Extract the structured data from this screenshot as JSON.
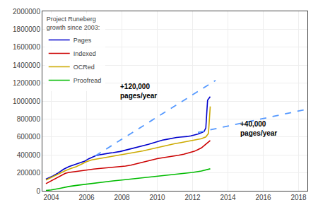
{
  "chart_data": {
    "type": "line",
    "legend_title": "Project Runeberg\ngrowth since 2003:",
    "legend": "upper left",
    "grid": true,
    "xlim": [
      2003.5,
      2018.5
    ],
    "ylim": [
      0,
      2000000
    ],
    "xticks": [
      2004,
      2006,
      2008,
      2010,
      2012,
      2014,
      2016,
      2018
    ],
    "yticks": [
      0,
      200000,
      400000,
      600000,
      800000,
      1000000,
      1200000,
      1400000,
      1600000,
      1800000,
      2000000
    ],
    "series": [
      {
        "name": "Pages",
        "color": "#0000cc",
        "line_style": "solid",
        "x": [
          2003.7,
          2003.9,
          2004.1,
          2004.4,
          2004.7,
          2005.0,
          2005.3,
          2005.6,
          2005.9,
          2006.1,
          2006.3,
          2006.5,
          2006.7,
          2006.9,
          2007.1,
          2007.3,
          2007.5,
          2007.7,
          2007.9,
          2008.1,
          2008.3,
          2008.5,
          2008.7,
          2008.9,
          2009.1,
          2009.3,
          2009.5,
          2009.7,
          2009.9,
          2010.1,
          2010.3,
          2010.5,
          2010.7,
          2010.9,
          2011.1,
          2011.3,
          2011.5,
          2011.7,
          2011.9,
          2012.1,
          2012.3,
          2012.5,
          2012.65,
          2012.75,
          2012.85,
          2013.0
        ],
        "values": [
          130000,
          145000,
          165000,
          200000,
          240000,
          270000,
          290000,
          310000,
          330000,
          355000,
          375000,
          390000,
          400000,
          408000,
          415000,
          420000,
          425000,
          430000,
          438000,
          448000,
          458000,
          468000,
          475000,
          482000,
          492000,
          505000,
          518000,
          530000,
          542000,
          555000,
          565000,
          572000,
          580000,
          590000,
          595000,
          598000,
          600000,
          605000,
          612000,
          620000,
          632000,
          648000,
          660000,
          700000,
          1010000,
          1050000
        ]
      },
      {
        "name": "Indexed",
        "color": "#cc0000",
        "line_style": "solid",
        "x": [
          2003.7,
          2003.9,
          2004.2,
          2004.5,
          2004.8,
          2005.0,
          2005.3,
          2005.6,
          2005.9,
          2006.1,
          2006.4,
          2006.7,
          2007.0,
          2007.3,
          2007.6,
          2007.9,
          2008.2,
          2008.5,
          2008.8,
          2009.1,
          2009.4,
          2009.7,
          2010.0,
          2010.3,
          2010.6,
          2010.9,
          2011.2,
          2011.5,
          2011.7,
          2011.9,
          2012.1,
          2012.3,
          2012.5,
          2012.7,
          2012.9,
          2013.0
        ],
        "values": [
          80000,
          100000,
          130000,
          165000,
          195000,
          205000,
          215000,
          220000,
          228000,
          235000,
          242000,
          248000,
          253000,
          258000,
          263000,
          268000,
          275000,
          285000,
          300000,
          318000,
          332000,
          345000,
          358000,
          368000,
          376000,
          385000,
          396000,
          408000,
          418000,
          428000,
          440000,
          458000,
          478000,
          510000,
          545000,
          560000
        ]
      },
      {
        "name": "OCRed",
        "color": "#ccaa00",
        "line_style": "solid",
        "x": [
          2003.7,
          2003.9,
          2004.2,
          2004.5,
          2004.8,
          2005.1,
          2005.4,
          2005.7,
          2006.0,
          2006.3,
          2006.5,
          2006.7,
          2006.9,
          2007.1,
          2007.4,
          2007.7,
          2008.0,
          2008.3,
          2008.6,
          2008.9,
          2009.2,
          2009.5,
          2009.8,
          2010.1,
          2010.4,
          2010.7,
          2011.0,
          2011.3,
          2011.6,
          2011.9,
          2012.2,
          2012.5,
          2012.75,
          2012.9,
          2013.0
        ],
        "values": [
          120000,
          140000,
          165000,
          195000,
          225000,
          248000,
          268000,
          295000,
          325000,
          345000,
          352000,
          358000,
          363000,
          368000,
          378000,
          390000,
          400000,
          412000,
          422000,
          432000,
          445000,
          458000,
          472000,
          488000,
          500000,
          512000,
          525000,
          535000,
          545000,
          555000,
          565000,
          580000,
          600000,
          640000,
          940000
        ]
      },
      {
        "name": "Proofread",
        "color": "#00bb00",
        "line_style": "solid",
        "x": [
          2003.7,
          2004.0,
          2004.5,
          2005.0,
          2005.5,
          2006.0,
          2006.5,
          2007.0,
          2007.5,
          2008.0,
          2008.5,
          2009.0,
          2009.5,
          2010.0,
          2010.5,
          2011.0,
          2011.5,
          2012.0,
          2012.5,
          2013.0
        ],
        "values": [
          3000,
          10000,
          28000,
          48000,
          62000,
          75000,
          88000,
          100000,
          110000,
          120000,
          130000,
          140000,
          152000,
          163000,
          173000,
          182000,
          192000,
          205000,
          220000,
          245000
        ]
      },
      {
        "color": "#5599ff",
        "line_style": "dashed",
        "x": [
          2006.5,
          2013.3
        ],
        "values": [
          390000,
          1230000
        ]
      },
      {
        "color": "#5599ff",
        "line_style": "dashed",
        "x": [
          2012.3,
          2018.5
        ],
        "values": [
          650000,
          910000
        ]
      }
    ],
    "annotations": [
      {
        "x": 2007.8,
        "y": 1110000,
        "text": "+120,000\npages/year"
      },
      {
        "x": 2014.6,
        "y": 690000,
        "text": "+40,000\npages/year"
      }
    ]
  }
}
